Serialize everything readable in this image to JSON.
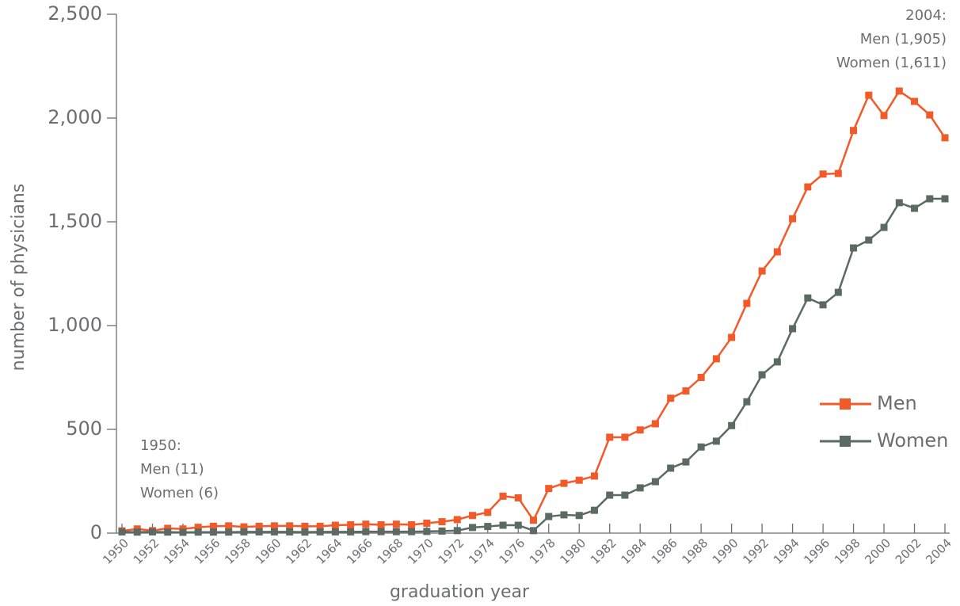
{
  "chart_data": {
    "type": "line",
    "x_label": "graduation year",
    "y_label": "number of physicians",
    "x": [
      1950,
      1951,
      1952,
      1953,
      1954,
      1955,
      1956,
      1957,
      1958,
      1959,
      1960,
      1961,
      1962,
      1963,
      1964,
      1965,
      1966,
      1967,
      1968,
      1969,
      1970,
      1971,
      1972,
      1973,
      1974,
      1975,
      1976,
      1977,
      1978,
      1979,
      1980,
      1981,
      1982,
      1983,
      1984,
      1985,
      1986,
      1987,
      1988,
      1989,
      1990,
      1991,
      1992,
      1993,
      1994,
      1995,
      1996,
      1997,
      1998,
      1999,
      2000,
      2001,
      2002,
      2003,
      2004
    ],
    "series": [
      {
        "name": "Men",
        "color": "#f15a29",
        "values": [
          11,
          20,
          12,
          23,
          20,
          28,
          33,
          35,
          30,
          33,
          35,
          35,
          33,
          33,
          38,
          40,
          43,
          40,
          43,
          40,
          48,
          55,
          65,
          85,
          100,
          178,
          170,
          62,
          215,
          240,
          255,
          275,
          462,
          462,
          497,
          527,
          650,
          685,
          750,
          840,
          943,
          1107,
          1263,
          1355,
          1515,
          1668,
          1730,
          1733,
          1940,
          2110,
          2012,
          2130,
          2080,
          2015,
          1905
        ]
      },
      {
        "name": "Women",
        "color": "#5b6b63",
        "values": [
          6,
          5,
          6,
          5,
          4,
          5,
          5,
          5,
          6,
          6,
          6,
          6,
          5,
          6,
          6,
          6,
          7,
          7,
          7,
          7,
          8,
          10,
          12,
          27,
          32,
          38,
          38,
          12,
          80,
          88,
          85,
          110,
          183,
          183,
          218,
          248,
          313,
          343,
          415,
          443,
          518,
          633,
          763,
          825,
          985,
          1133,
          1100,
          1160,
          1374,
          1412,
          1473,
          1592,
          1565,
          1611,
          1611
        ]
      }
    ],
    "xlim": [
      1950,
      2004
    ],
    "xticks": [
      1950,
      1952,
      1954,
      1956,
      1958,
      1960,
      1962,
      1964,
      1966,
      1968,
      1970,
      1972,
      1974,
      1976,
      1978,
      1980,
      1982,
      1984,
      1986,
      1988,
      1990,
      1992,
      1994,
      1996,
      1998,
      2000,
      2002,
      2004
    ],
    "ylim": [
      0,
      2500
    ],
    "yticks": [
      0,
      500,
      {
        "value": 1000,
        "label": "1,000"
      },
      {
        "value": 1500,
        "label": "1,500"
      },
      {
        "value": 2000,
        "label": "2,000"
      },
      {
        "value": 2500,
        "label": "2,500"
      }
    ],
    "legend": "right",
    "annotations": [
      [
        "2004:",
        "Men (1,905)",
        "Women (1,611)"
      ],
      [
        "1950:",
        "Men (11)",
        "Women (6)"
      ]
    ]
  }
}
